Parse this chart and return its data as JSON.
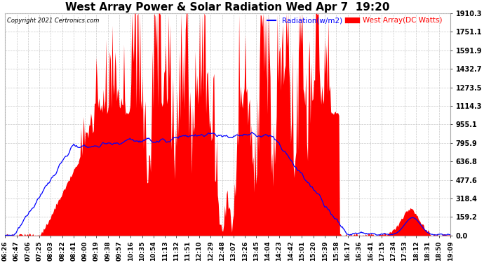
{
  "title": "West Array Power & Solar Radiation Wed Apr 7  19:20",
  "copyright": "Copyright 2021 Certronics.com",
  "legend_radiation": "Radiation(w/m2)",
  "legend_west": "West Array(DC Watts)",
  "ylabel_right_values": [
    1910.3,
    1751.1,
    1591.9,
    1432.7,
    1273.5,
    1114.3,
    955.1,
    795.9,
    636.8,
    477.6,
    318.4,
    159.2,
    0.0
  ],
  "ymax": 1910.3,
  "ymin": 0.0,
  "background_color": "#ffffff",
  "plot_bg_color": "#ffffff",
  "radiation_color": "#0000ff",
  "west_array_color": "#ff0000",
  "west_array_fill_color": "#ff0000",
  "grid_color": "#c8c8c8",
  "title_fontsize": 11,
  "tick_fontsize": 6.5,
  "x_labels": [
    "06:26",
    "06:47",
    "07:06",
    "07:25",
    "08:03",
    "08:22",
    "08:41",
    "09:00",
    "09:19",
    "09:38",
    "09:57",
    "10:16",
    "10:35",
    "10:54",
    "11:13",
    "11:32",
    "11:51",
    "12:10",
    "12:29",
    "12:48",
    "13:07",
    "13:26",
    "13:45",
    "14:04",
    "14:23",
    "14:42",
    "15:01",
    "15:20",
    "15:39",
    "15:58",
    "16:17",
    "16:36",
    "16:41",
    "17:15",
    "17:34",
    "17:53",
    "18:12",
    "18:31",
    "18:50",
    "19:09"
  ]
}
